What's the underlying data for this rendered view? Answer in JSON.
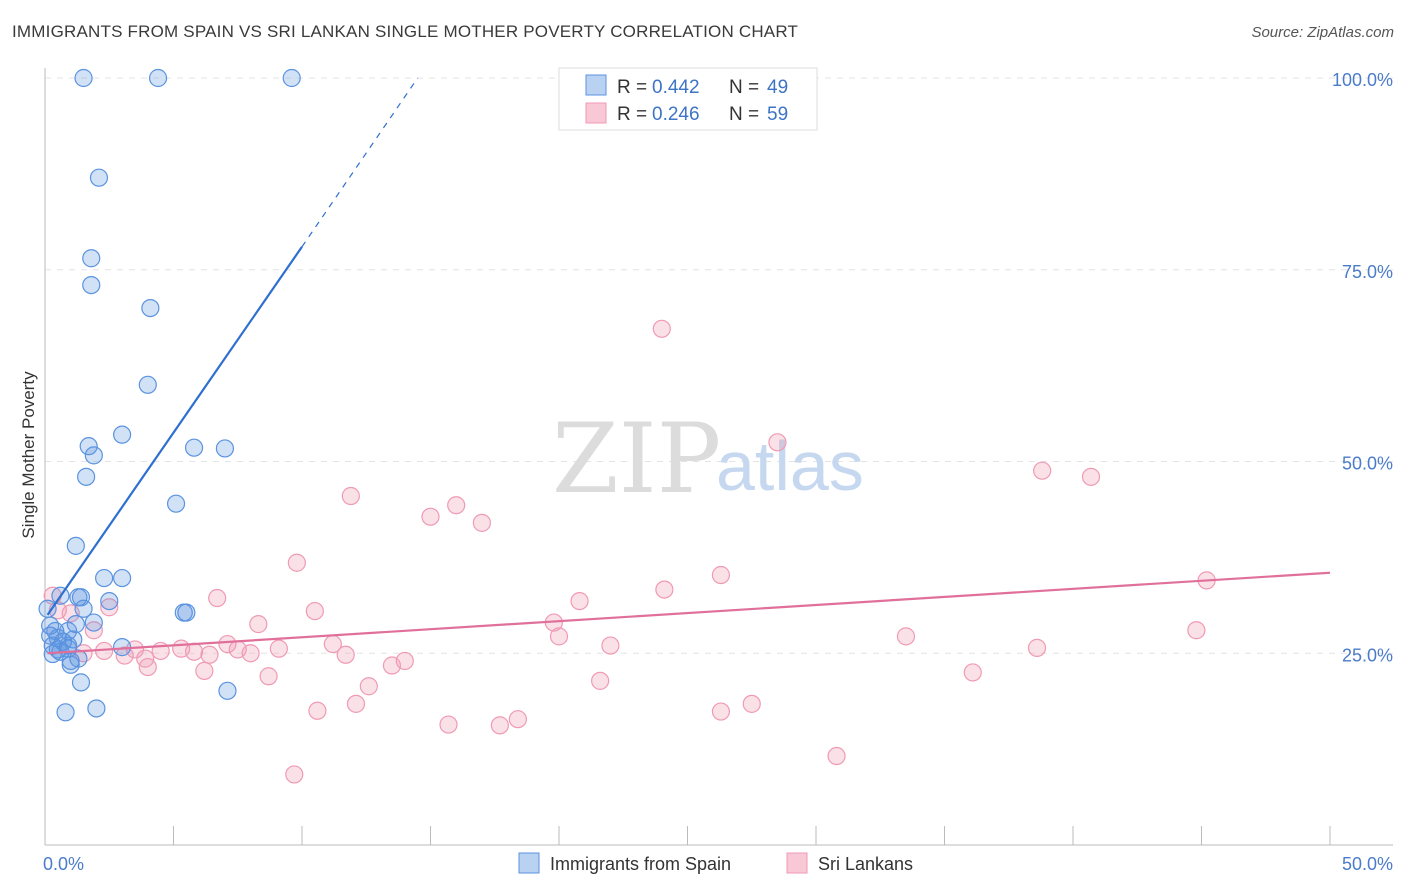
{
  "title": "IMMIGRANTS FROM SPAIN VS SRI LANKAN SINGLE MOTHER POVERTY CORRELATION CHART",
  "source": "Source: ZipAtlas.com",
  "colors": {
    "blue": "#5b93e0",
    "blue_line": "#2e6fcf",
    "pink": "#f09ab4",
    "pink_line": "#e0709a",
    "axis_text": "#4a7cc9"
  },
  "chart_data": {
    "type": "scatter",
    "title": "IMMIGRANTS FROM SPAIN VS SRI LANKAN SINGLE MOTHER POVERTY CORRELATION CHART",
    "xlabel": "",
    "ylabel": "Single Mother Poverty",
    "xlim": [
      0,
      50
    ],
    "ylim": [
      0,
      100
    ],
    "x_tick_labels": {
      "left": "0.0%",
      "right": "50.0%"
    },
    "y_ticks": [
      {
        "value": 25,
        "label": "25.0%"
      },
      {
        "value": 50,
        "label": "50.0%"
      },
      {
        "value": 75,
        "label": "75.0%"
      },
      {
        "value": 100,
        "label": "100.0%"
      }
    ],
    "watermark": {
      "zip": "ZIP",
      "atlas": "atlas"
    },
    "legend": [
      {
        "r_label": "R = ",
        "r": "0.442",
        "n_label": "N = ",
        "n": "49"
      },
      {
        "r_label": "R = ",
        "r": "0.246",
        "n_label": "N = ",
        "n": "59"
      }
    ],
    "series": [
      {
        "name": "Immigrants from Spain",
        "color": "#5b93e0",
        "trend": {
          "x0": 0.1,
          "y0": 30,
          "x1": 10,
          "y1": 78,
          "dash_to_x": 14.5,
          "dash_to_y": 100
        },
        "points": [
          [
            1.5,
            100
          ],
          [
            4.4,
            100
          ],
          [
            9.6,
            100
          ],
          [
            2.1,
            87
          ],
          [
            1.8,
            76.5
          ],
          [
            1.8,
            73
          ],
          [
            4.1,
            70
          ],
          [
            4.0,
            60
          ],
          [
            3.0,
            53.5
          ],
          [
            1.7,
            52
          ],
          [
            5.8,
            51.8
          ],
          [
            7.0,
            51.7
          ],
          [
            1.9,
            50.8
          ],
          [
            1.6,
            48
          ],
          [
            5.1,
            44.5
          ],
          [
            1.2,
            39
          ],
          [
            2.3,
            34.8
          ],
          [
            3.0,
            34.8
          ],
          [
            0.6,
            32.5
          ],
          [
            1.3,
            32.3
          ],
          [
            1.4,
            32.3
          ],
          [
            2.5,
            31.8
          ],
          [
            1.5,
            30.8
          ],
          [
            0.1,
            30.8
          ],
          [
            5.4,
            30.3
          ],
          [
            5.5,
            30.3
          ],
          [
            0.2,
            28.6
          ],
          [
            1.2,
            28.8
          ],
          [
            1.9,
            29
          ],
          [
            0.4,
            27.9
          ],
          [
            0.9,
            27.9
          ],
          [
            0.5,
            27
          ],
          [
            0.7,
            26.5
          ],
          [
            1.1,
            26.8
          ],
          [
            3.0,
            25.8
          ],
          [
            0.3,
            26
          ],
          [
            0.9,
            26
          ],
          [
            0.9,
            25.6
          ],
          [
            0.6,
            25.2
          ],
          [
            0.3,
            24.9
          ],
          [
            1.0,
            24
          ],
          [
            1.3,
            24.3
          ],
          [
            1.4,
            21.2
          ],
          [
            7.1,
            20.1
          ],
          [
            0.8,
            17.3
          ],
          [
            2.0,
            17.8
          ],
          [
            0.5,
            25.5
          ],
          [
            0.2,
            27.3
          ],
          [
            1.0,
            23.5
          ]
        ]
      },
      {
        "name": "Sri Lankans",
        "color": "#f09ab4",
        "trend": {
          "x0": 0.1,
          "y0": 25,
          "x1": 50,
          "y1": 35.5
        },
        "points": [
          [
            24.0,
            67.3
          ],
          [
            28.5,
            52.5
          ],
          [
            38.8,
            48.8
          ],
          [
            40.7,
            48
          ],
          [
            11.9,
            45.5
          ],
          [
            16.0,
            44.3
          ],
          [
            15.0,
            42.8
          ],
          [
            17.0,
            42
          ],
          [
            9.8,
            36.8
          ],
          [
            26.3,
            35.2
          ],
          [
            45.2,
            34.5
          ],
          [
            24.1,
            33.3
          ],
          [
            6.7,
            32.2
          ],
          [
            20.8,
            31.8
          ],
          [
            0.5,
            30.6
          ],
          [
            1.0,
            30.2
          ],
          [
            10.5,
            30.5
          ],
          [
            19.8,
            29
          ],
          [
            8.3,
            28.8
          ],
          [
            44.8,
            28
          ],
          [
            1.9,
            28
          ],
          [
            20.0,
            27.2
          ],
          [
            33.5,
            27.2
          ],
          [
            7.1,
            26.2
          ],
          [
            11.2,
            26.2
          ],
          [
            22.0,
            26
          ],
          [
            38.6,
            25.7
          ],
          [
            9.1,
            25.6
          ],
          [
            5.3,
            25.6
          ],
          [
            4.5,
            25.3
          ],
          [
            2.3,
            25.3
          ],
          [
            1.5,
            25
          ],
          [
            3.5,
            25.5
          ],
          [
            5.8,
            25.2
          ],
          [
            6.4,
            24.8
          ],
          [
            7.5,
            25.5
          ],
          [
            8.0,
            25
          ],
          [
            11.7,
            24.8
          ],
          [
            3.1,
            24.7
          ],
          [
            3.9,
            24.3
          ],
          [
            14.0,
            24
          ],
          [
            13.5,
            23.4
          ],
          [
            4.0,
            23.2
          ],
          [
            6.2,
            22.7
          ],
          [
            8.7,
            22
          ],
          [
            36.1,
            22.5
          ],
          [
            21.6,
            21.4
          ],
          [
            12.6,
            20.7
          ],
          [
            12.1,
            18.4
          ],
          [
            10.6,
            17.5
          ],
          [
            27.5,
            18.4
          ],
          [
            26.3,
            17.4
          ],
          [
            18.4,
            16.4
          ],
          [
            17.7,
            15.6
          ],
          [
            15.7,
            15.7
          ],
          [
            30.8,
            11.6
          ],
          [
            9.7,
            9.2
          ],
          [
            2.5,
            31
          ],
          [
            0.3,
            32.5
          ]
        ]
      }
    ]
  }
}
